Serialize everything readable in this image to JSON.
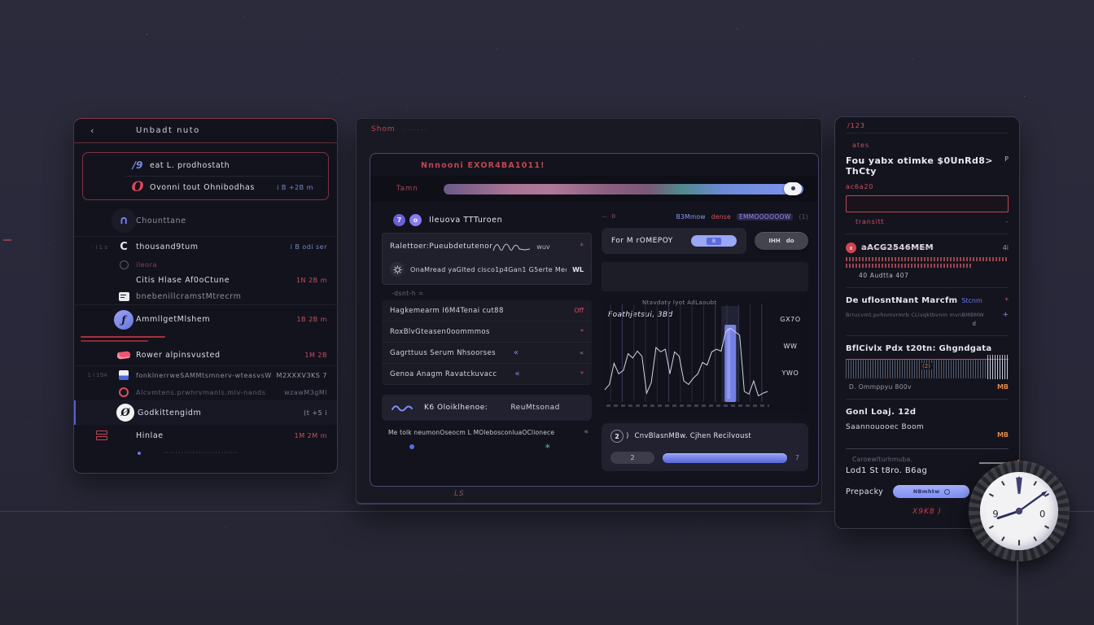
{
  "theme": {
    "background": "#28283a",
    "panel": "#14141e",
    "accent_red": "#d95260",
    "accent_blue": "#8c9bf5",
    "accent_purple": "#8a7df0",
    "accent_teal": "#4fae8d",
    "accent_orange": "#d98a4a",
    "text_primary": "#e9e9f2",
    "text_dim": "#8b8b9e"
  },
  "icons": {
    "back": "‹",
    "pin1": "∕9",
    "pin2": "O",
    "arch": "∩",
    "cmark": "C",
    "func": "ƒ",
    "oblack": "Ø",
    "chev_left": "«",
    "asterisk": "*",
    "sparkle": "∗",
    "header_icon1": "7",
    "header_icon2": "o"
  },
  "left_panel": {
    "header_title": "Unbadt  nuto",
    "pinned": [
      {
        "label": "eat L. prodhostath",
        "meta": ""
      },
      {
        "label": "Ovonni tout Ohnibodhas",
        "meta": "i B +2B  m"
      }
    ],
    "items": [
      {
        "gutter": "",
        "label": "Chounttane",
        "meta": ""
      },
      {
        "gutter": "· i 1 s",
        "label": "thousand9tum",
        "meta": "i B odi  ser"
      },
      {
        "gutter": "",
        "label": "ileora",
        "meta": ""
      },
      {
        "gutter": "",
        "label": "Citis Hlase  Af0oCtune",
        "meta": "1N 2B  m"
      },
      {
        "gutter": "",
        "label": "bnebenillcramstMtrecrm",
        "meta": ""
      },
      {
        "gutter": "",
        "label": "AmmllgetMlshem",
        "meta": "1B 2B  m"
      },
      {
        "gutter": "",
        "label": "Rower  alpinsvusted",
        "meta": "1M 2B"
      },
      {
        "gutter": "1 i 19A",
        "label": "fonklnerrweSAMMtsmnerv-wteasvsW",
        "meta": "M2XXXV3KS  7"
      },
      {
        "gutter": "",
        "label": "Alcvmtens.prwhrvmanls.mlv-nands",
        "meta": "wzawM3gMl"
      },
      {
        "gutter": "",
        "label": "Godkittengidm",
        "meta": "(t  +5   i"
      },
      {
        "gutter": "",
        "label": "Hinlae",
        "meta": "1M 2M  m"
      }
    ],
    "footer_dots": "··························"
  },
  "main_panel": {
    "window_label": "Shom",
    "window_label_dots": "·······",
    "heading": "Nnnooni EXOR4BA1011!",
    "slider_label": "Tamn",
    "left_col": {
      "header": "Ileuova  TTTuroen",
      "card_title": "Ralettoer:Pueubdetutenor",
      "card_suffix": "wuv",
      "gear_text": "OnaMread yaGlted cisco1p4Gan1 G5erte Meo",
      "gear_meta": "WL",
      "subnote": "-dsnt-h =",
      "rows": [
        {
          "label": "Hagkemearm I6M4Tenai cut88",
          "meta": "Off"
        },
        {
          "label": "RoxBlvGteasen0oommmos",
          "meta": "*"
        },
        {
          "label": "Gagrttuus  Serum Nhsoorses",
          "meta": "«"
        },
        {
          "label": "Genoa Anagm Ravatckuvacc",
          "meta": "*"
        }
      ],
      "brand": "K6 Oloiklhenoe:",
      "brand2": "ReuMtsonad",
      "footer_text": "Me tolk neumonOseocm L MOlebosconluaOClionece"
    },
    "right_col": {
      "badge_mark": "— ·B",
      "badge1": "B3Mmow",
      "badge2": "dense",
      "badge3": "EMMOOOOOOW",
      "badge4": "(1)",
      "control_label": "For M rOMEPOY",
      "pill1": "B",
      "pill2a": "IHH",
      "pill2b": "do",
      "bottom_text": "CnvBlasnMBw. Cjhen Recilvoust",
      "bottom_badge": "2",
      "bottom_paren": ")",
      "pager_left": "2",
      "pager_right": "7"
    },
    "footer_label": "LS"
  },
  "chart_data": {
    "type": "line",
    "title": "Ntavdaty lyot AdLaoubt",
    "label": "Foathjetsui, 3Bd",
    "right_labels": [
      "GX7O",
      "WW",
      "YWO"
    ],
    "gridlines": 14,
    "y_range": [
      0,
      100
    ],
    "series": [
      {
        "name": "main",
        "values": [
          14,
          20,
          44,
          32,
          36,
          55,
          50,
          58,
          52,
          10,
          22,
          62,
          57,
          60,
          32,
          57,
          52,
          24,
          20,
          27,
          32,
          45,
          42,
          57,
          60,
          58,
          80,
          84,
          80,
          76,
          12,
          9,
          24,
          7,
          10,
          12
        ]
      }
    ],
    "bar": {
      "index": 27,
      "value": 88
    }
  },
  "side_panel": {
    "tab": "/123",
    "kicker": "ates",
    "heading": "Fou yabx otimke $0UnRd8> ThCty",
    "heading_meta": "P",
    "field_label": "ac6a20",
    "input_value": "",
    "input_note": "transitt",
    "note_meta": "–",
    "section1_title": "aACG2546MEM",
    "section1_icon": "x",
    "section1_meta": "4i",
    "section1_sub": "40 Audtta  407",
    "section2_title": "De uflosntNant  Marcfm",
    "section2_accent": "Stcnm",
    "section2_meta": "*",
    "section2_body": "Brrucvmt.pvhnmvrmrb CLivqktbvnm mvnBMBMW",
    "section2_plus": "+",
    "section2_d": "d",
    "section3_title": "BflCivlx  Pdx  t20tn:  Ghgndgata",
    "wave_badge": "(2)",
    "section3_sub": "D. Ommppyu 800v",
    "section3_meta": "MB",
    "section4_title": "Gonl Loaj. 12d",
    "section4_sub": "Saannouooec  Boom",
    "section4_meta": "MB",
    "footer_note": "Caroewlturhmuba.",
    "footer_title": "Lod1  St t8ro. B6ag",
    "control_label": "Prepacky",
    "button_label": "NBmhtw",
    "warning": "X9K8 )"
  },
  "clock": {
    "label": "N",
    "number_left": "9",
    "number_right": "0"
  }
}
